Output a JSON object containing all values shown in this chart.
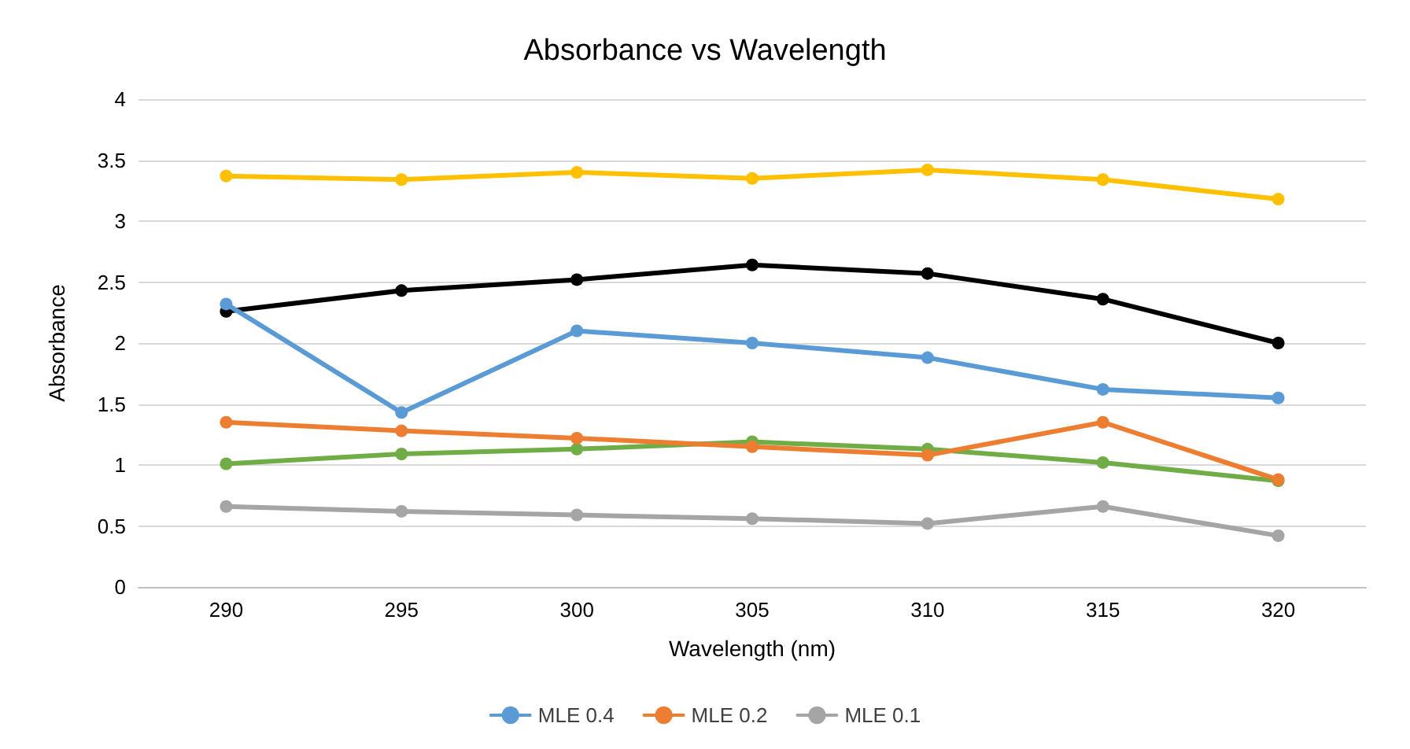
{
  "chart_data": {
    "type": "line",
    "title": "Absorbance vs Wavelength",
    "xlabel": "Wavelength (nm)",
    "ylabel": "Absorbance",
    "categories": [
      "290",
      "295",
      "300",
      "305",
      "310",
      "315",
      "320"
    ],
    "series": [
      {
        "name": "MLE 0.4",
        "color": "#5b9bd5",
        "values": [
          2.32,
          1.43,
          2.1,
          2.0,
          1.88,
          1.62,
          1.55
        ]
      },
      {
        "name": "MLE 0.2",
        "color": "#ed7d31",
        "values": [
          1.35,
          1.28,
          1.22,
          1.15,
          1.08,
          1.35,
          0.88
        ]
      },
      {
        "name": "MLE 0.1",
        "color": "#a5a5a5",
        "values": [
          0.66,
          0.62,
          0.59,
          0.56,
          0.52,
          0.66,
          0.42
        ]
      },
      {
        "color": "#ffc000",
        "values": [
          3.37,
          3.34,
          3.4,
          3.35,
          3.42,
          3.34,
          3.18
        ]
      },
      {
        "color": "#000000",
        "values": [
          2.26,
          2.43,
          2.52,
          2.64,
          2.57,
          2.36,
          2.0
        ]
      },
      {
        "color": "#70ad47",
        "values": [
          1.01,
          1.09,
          1.13,
          1.19,
          1.13,
          1.02,
          0.87
        ]
      }
    ],
    "ylim": [
      0,
      4
    ],
    "yticks": [
      0,
      0.5,
      1,
      1.5,
      2,
      2.5,
      3,
      3.5,
      4
    ],
    "grid": "y",
    "legend": "bottom",
    "marker": "circle",
    "line_style": "solid"
  }
}
